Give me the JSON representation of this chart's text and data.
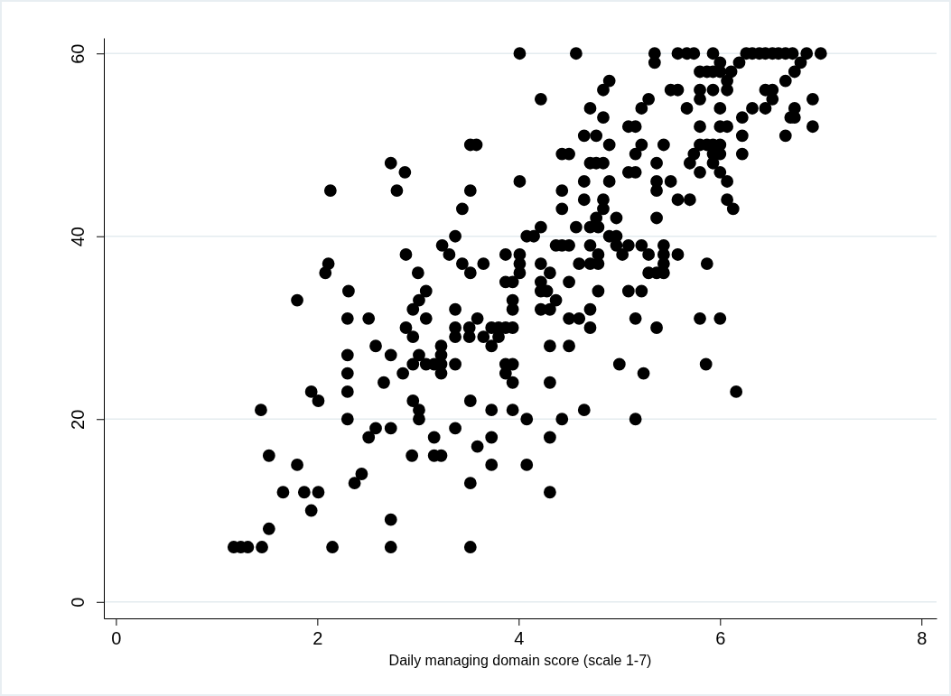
{
  "chart_data": {
    "type": "scatter",
    "xlabel": "Daily managing domain score (scale 1-7)",
    "xlim": [
      -0.12,
      8.15
    ],
    "ylim": [
      -1.8,
      61.7
    ],
    "xticks": [
      0,
      2,
      4,
      6,
      8
    ],
    "yticks": [
      0,
      20,
      40,
      60
    ],
    "grid": "y",
    "marker": "circle",
    "series": [
      {
        "color": "#000000",
        "x": [
          1.17,
          1.24,
          1.31,
          1.45,
          1.44,
          1.52,
          1.52,
          1.66,
          1.8,
          1.8,
          1.87,
          1.94,
          1.94,
          2.01,
          2.01,
          2.08,
          2.11,
          2.15,
          2.3,
          2.3,
          2.3,
          2.3,
          2.3,
          2.31,
          2.13,
          2.37,
          2.44,
          2.51,
          2.51,
          2.58,
          2.58,
          2.66,
          2.73,
          2.73,
          2.73,
          2.73,
          2.73,
          2.79,
          2.85,
          2.87,
          2.88,
          2.88,
          2.94,
          2.95,
          2.95,
          2.95,
          2.95,
          3.01,
          3.01,
          3.01,
          3.01,
          3.08,
          3.08,
          3.08,
          3.0,
          3.16,
          3.16,
          3.16,
          3.23,
          3.23,
          3.23,
          3.23,
          3.23,
          3.24,
          3.31,
          3.37,
          3.37,
          3.37,
          3.37,
          3.37,
          3.37,
          3.44,
          3.44,
          3.51,
          3.51,
          3.52,
          3.52,
          3.52,
          3.52,
          3.52,
          3.52,
          3.58,
          3.59,
          3.59,
          3.65,
          3.65,
          3.73,
          3.73,
          3.73,
          3.73,
          3.73,
          3.8,
          3.8,
          3.87,
          3.87,
          3.87,
          3.87,
          3.87,
          3.94,
          3.94,
          3.94,
          3.94,
          3.94,
          3.94,
          3.94,
          4.01,
          4.01,
          4.01,
          4.01,
          4.01,
          4.08,
          4.08,
          4.08,
          4.15,
          4.22,
          4.22,
          4.22,
          4.22,
          4.22,
          4.22,
          4.28,
          4.31,
          4.31,
          4.31,
          4.31,
          4.31,
          4.31,
          4.37,
          4.37,
          4.43,
          4.43,
          4.43,
          4.43,
          4.43,
          4.5,
          4.5,
          4.5,
          4.5,
          4.5,
          4.57,
          4.57,
          4.6,
          4.6,
          4.65,
          4.65,
          4.65,
          4.65,
          4.71,
          4.71,
          4.71,
          4.71,
          4.71,
          4.71,
          4.71,
          4.77,
          4.77,
          4.77,
          4.79,
          4.79,
          4.79,
          4.79,
          4.84,
          4.84,
          4.84,
          4.84,
          4.84,
          4.9,
          4.9,
          4.9,
          4.9,
          4.97,
          4.97,
          4.97,
          5.0,
          5.03,
          5.09,
          5.09,
          5.09,
          5.09,
          5.16,
          5.16,
          5.16,
          5.16,
          5.16,
          5.22,
          5.22,
          5.22,
          5.22,
          5.24,
          5.29,
          5.29,
          5.29,
          5.35,
          5.35,
          5.37,
          5.37,
          5.37,
          5.37,
          5.37,
          5.37,
          5.44,
          5.44,
          5.44,
          5.44,
          5.44,
          5.51,
          5.51,
          5.58,
          5.58,
          5.58,
          5.58,
          5.67,
          5.67,
          5.7,
          5.7,
          5.74,
          5.74,
          5.8,
          5.8,
          5.8,
          5.8,
          5.8,
          5.8,
          5.8,
          5.87,
          5.87,
          5.86,
          5.87,
          5.93,
          5.93,
          5.93,
          5.93,
          5.93,
          5.93,
          6.0,
          6.0,
          6.0,
          6.0,
          6.0,
          6.0,
          6.0,
          6.0,
          6.07,
          6.07,
          6.07,
          6.07,
          6.07,
          6.11,
          6.13,
          6.16,
          6.19,
          6.22,
          6.22,
          6.22,
          6.26,
          6.32,
          6.32,
          6.39,
          6.45,
          6.45,
          6.45,
          6.52,
          6.52,
          6.52,
          6.58,
          6.65,
          6.65,
          6.65,
          6.7,
          6.72,
          6.74,
          6.74,
          6.74,
          6.8,
          6.86,
          6.92,
          6.92,
          7.0
        ],
        "values": [
          6,
          6,
          6,
          6,
          21,
          16,
          8,
          12,
          15,
          33,
          12,
          23,
          10,
          12,
          22,
          36,
          37,
          6,
          25,
          20,
          23,
          27,
          31,
          34,
          45,
          13,
          14,
          18,
          31,
          19,
          28,
          24,
          19,
          27,
          9,
          6,
          48,
          45,
          25,
          47,
          38,
          30,
          16,
          22,
          26,
          29,
          32,
          21,
          20,
          33,
          27,
          26,
          31,
          34,
          36,
          26,
          18,
          16,
          16,
          26,
          25,
          28,
          27,
          39,
          38,
          19,
          26,
          29,
          30,
          32,
          40,
          43,
          37,
          30,
          29,
          22,
          13,
          6,
          36,
          45,
          50,
          50,
          31,
          17,
          29,
          37,
          30,
          21,
          18,
          15,
          28,
          30,
          29,
          30,
          25,
          26,
          35,
          38,
          26,
          24,
          32,
          30,
          33,
          21,
          35,
          60,
          46,
          36,
          37,
          38,
          40,
          20,
          15,
          40,
          41,
          34,
          35,
          37,
          32,
          55,
          34,
          36,
          32,
          12,
          18,
          24,
          28,
          39,
          33,
          20,
          39,
          49,
          45,
          43,
          28,
          31,
          35,
          39,
          49,
          60,
          41,
          31,
          37,
          46,
          51,
          21,
          44,
          37,
          30,
          32,
          41,
          39,
          48,
          54,
          42,
          51,
          48,
          37,
          41,
          34,
          38,
          43,
          44,
          48,
          53,
          56,
          40,
          46,
          50,
          57,
          42,
          40,
          39,
          26,
          38,
          34,
          39,
          52,
          47,
          20,
          31,
          47,
          49,
          52,
          54,
          50,
          39,
          34,
          25,
          55,
          36,
          38,
          60,
          59,
          36,
          30,
          42,
          45,
          46,
          48,
          50,
          39,
          38,
          37,
          36,
          46,
          56,
          56,
          44,
          38,
          60,
          60,
          54,
          44,
          48,
          49,
          60,
          31,
          47,
          52,
          55,
          56,
          58,
          50,
          58,
          50,
          26,
          37,
          56,
          50,
          49,
          48,
          60,
          58,
          31,
          52,
          49,
          47,
          59,
          58,
          54,
          50,
          57,
          56,
          52,
          46,
          44,
          58,
          43,
          23,
          59,
          53,
          49,
          51,
          60,
          60,
          54,
          60,
          54,
          56,
          60,
          60,
          56,
          55,
          60,
          60,
          57,
          51,
          53,
          60,
          58,
          54,
          53,
          59,
          60,
          55,
          52,
          60
        ]
      }
    ]
  }
}
